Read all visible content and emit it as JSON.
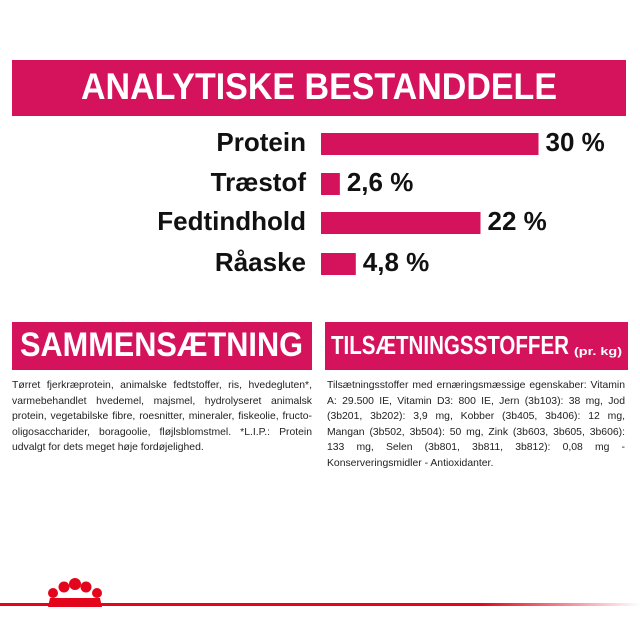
{
  "chart_data": {
    "type": "bar",
    "orientation": "horizontal",
    "title": "ANALYTISKE BESTANDDELE",
    "categories": [
      "Protein",
      "Træstof",
      "Fedtindhold",
      "Råaske"
    ],
    "values": [
      30,
      2.6,
      22,
      4.8
    ],
    "value_labels": [
      "30 %",
      "2,6 %",
      "22 %",
      "4,8 %"
    ],
    "color": "#d5135d"
  },
  "sections": [
    {
      "title": "SAMMENSÆTNING",
      "text": "Tørret fjerkræprotein, animalske fedtstoffer, ris, hvedegluten*, varmebehandlet hvedemel, majsmel, hydrolyseret animalsk protein, vegetabilske fibre, roesnitter, mineraler, fiskeolie, fructo-oligosaccharider, boragoolie, fløjlsblomstmel. *L.I.P.: Protein udvalgt for dets meget høje fordøjelighed."
    },
    {
      "title": "TILSÆTNINGSSTOFFER",
      "subtitle": "(pr. kg)",
      "text": "Tilsætningsstoffer med ernæringsmæssige egenskaber: Vitamin A: 29.500 IE, Vitamin D3: 800 IE, Jern (3b103): 38 mg, Jod (3b201, 3b202): 3,9 mg, Kobber (3b405, 3b406): 12 mg, Mangan (3b502, 3b504): 50 mg, Zink (3b603, 3b605, 3b606): 133 mg, Selen (3b801, 3b811, 3b812): 0,08 mg - Konserveringsmidler - Antioxidanter."
    }
  ]
}
